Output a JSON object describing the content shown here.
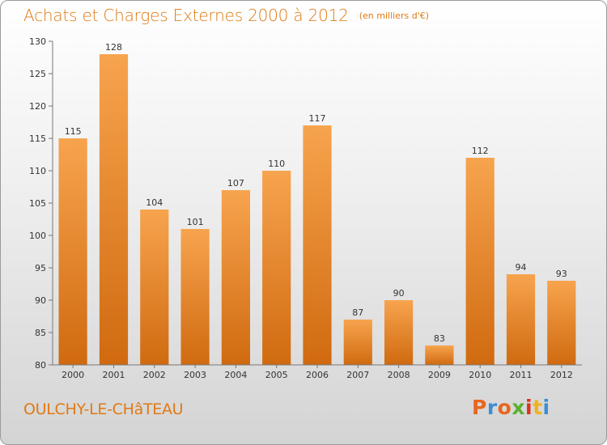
{
  "chart_data": {
    "type": "bar",
    "title": "Achats et Charges Externes 2000 à 2012",
    "subtitle": "(en milliers d'€)",
    "categories": [
      "2000",
      "2001",
      "2002",
      "2003",
      "2004",
      "2005",
      "2006",
      "2007",
      "2008",
      "2009",
      "2010",
      "2011",
      "2012"
    ],
    "values": [
      115,
      128,
      104,
      101,
      107,
      110,
      117,
      87,
      90,
      83,
      112,
      94,
      93
    ],
    "ylim": [
      80,
      130
    ],
    "yticks": [
      80,
      85,
      90,
      95,
      100,
      105,
      110,
      115,
      120,
      125,
      130
    ],
    "grid": false,
    "bar_color_top": "#f7a44e",
    "bar_color_bottom": "#d06a10",
    "data_labels": true
  },
  "footer": {
    "commune": "OULCHY-LE-CHâTEAU",
    "logo_text": "Proxiti",
    "logo_colors": [
      "#e8661e",
      "#3a8fd4",
      "#e8661e",
      "#58b22e",
      "#d8341c",
      "#f0b21e",
      "#3a8fd4"
    ]
  }
}
